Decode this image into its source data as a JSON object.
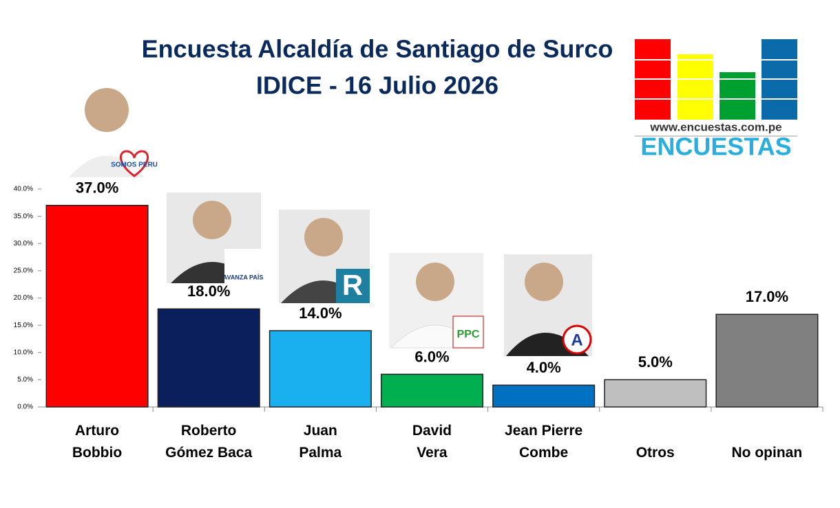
{
  "chart_data": {
    "type": "bar",
    "title": "Encuesta Alcaldía de Santiago de Surco",
    "subtitle": "IDICE - 16 Julio 2026",
    "categories": [
      "Arturo\nBobbio",
      "Roberto\nGómez Baca",
      "Juan\nPalma",
      "David\nVera",
      "Jean Pierre\nCombe",
      "Otros",
      "No opinan"
    ],
    "values": [
      37,
      18,
      14,
      6,
      4,
      5,
      17
    ],
    "value_labels": [
      "37.0%",
      "18.0%",
      "14.0%",
      "6.0%",
      "4.0%",
      "5.0%",
      "17.0%"
    ],
    "colors": [
      "#ff0000",
      "#0b1f5c",
      "#1ab0f0",
      "#00b050",
      "#0070c0",
      "#bfbfbf",
      "#808080"
    ],
    "ylim": [
      0,
      40
    ],
    "yticks": [
      {
        "value": 0,
        "label": "0.0%"
      },
      {
        "value": 5,
        "label": "5.0%"
      },
      {
        "value": 10,
        "label": "10.0%"
      },
      {
        "value": 15,
        "label": "15.0%"
      },
      {
        "value": 20,
        "label": "20.0%"
      },
      {
        "value": 25,
        "label": "25.0%"
      },
      {
        "value": 30,
        "label": "30.0%"
      },
      {
        "value": 35,
        "label": "35.0%"
      },
      {
        "value": 40,
        "label": "40.0%"
      }
    ],
    "grid": false
  },
  "logo": {
    "url": "www.encuestas.com.pe",
    "name": "ENCUESTAS"
  },
  "party_labels": [
    "SOMOS PERU",
    "AVANZA PAÍS",
    "R",
    "PPC",
    "A"
  ]
}
